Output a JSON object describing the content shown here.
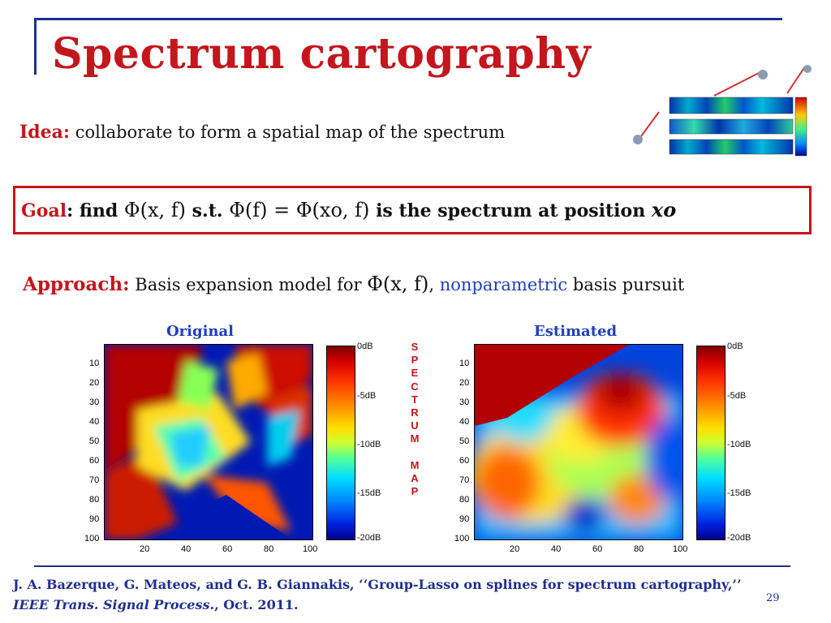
{
  "slide": {
    "title": "Spectrum cartography",
    "page_number": "29"
  },
  "idea": {
    "keyword": "Idea:",
    "text": "collaborate to form a spatial map of the spectrum"
  },
  "goal": {
    "keyword": "Goal",
    "colon": ":",
    "find": "find",
    "expr1": "Φ(x, f)",
    "st": "s.t.",
    "expr2": "Φ(f) = Φ(xo, f)",
    "tail": "is the spectrum at position",
    "position_symbol": "xo"
  },
  "approach": {
    "keyword": "Approach:",
    "text": "Basis expansion model for",
    "expr": "Φ(x, f)",
    "comma": ",",
    "blue_term": "nonparametric",
    "tail": "basis pursuit"
  },
  "panels": {
    "left_label": "Original",
    "right_label": "Estimated",
    "y_ticks": [
      "10",
      "20",
      "30",
      "40",
      "50",
      "60",
      "70",
      "80",
      "90",
      "100"
    ],
    "x_ticks": [
      "20",
      "40",
      "60",
      "80",
      "100"
    ],
    "colorbar_ticks": [
      "0dB",
      "-5dB",
      "-10dB",
      "-15dB",
      "-20dB"
    ]
  },
  "vertical_word": [
    "S",
    "P",
    "E",
    "C",
    "T",
    "R",
    "U",
    "M",
    "",
    "M",
    "A",
    "P"
  ],
  "citation": {
    "part1": "J. A. Bazerque, G. Mateos, and G. B. Giannakis, ‘‘Group-Lasso on splines for spectrum cartography,’’ ",
    "journal": "IEEE Trans. Signal Process.",
    "part2": ", Oct. 2011."
  },
  "colors": {
    "title_red": "#c4161c",
    "accent_blue": "#1f3fbf",
    "rule_blue": "#1f2f8f"
  }
}
